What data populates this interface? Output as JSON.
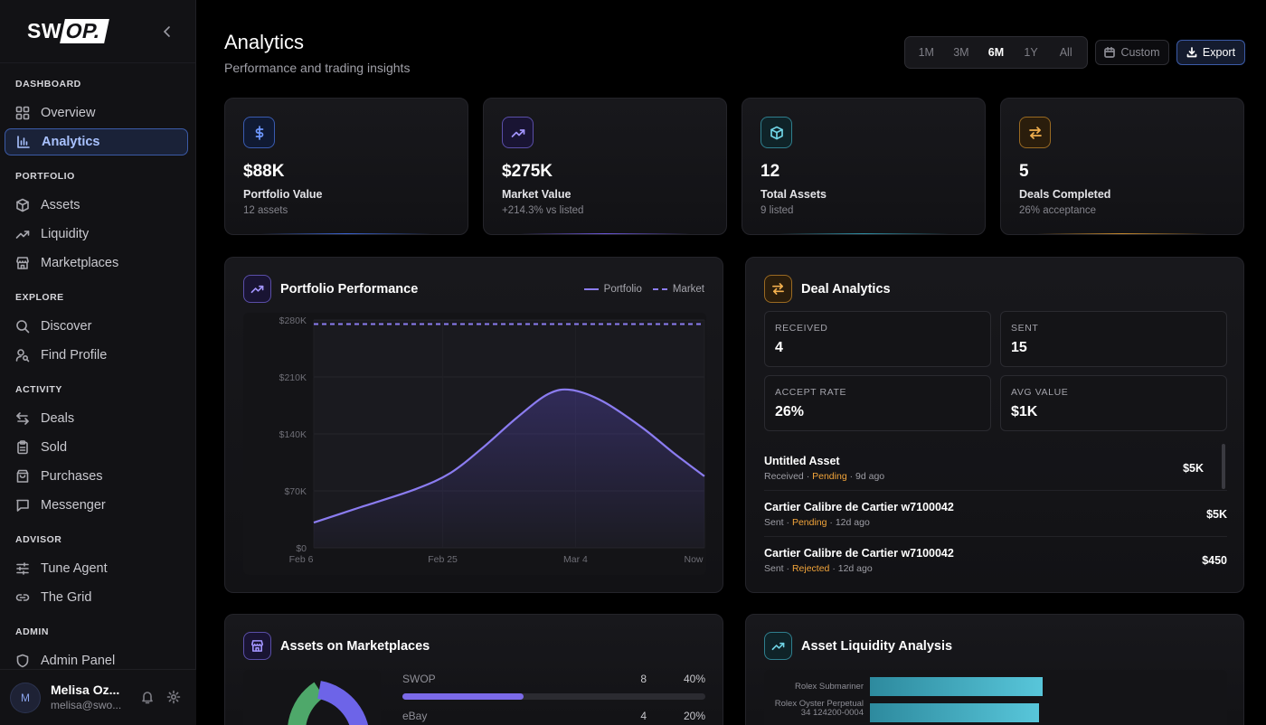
{
  "brand": {
    "logo_left": "SW",
    "logo_right": "OP."
  },
  "sidebar": {
    "sections": [
      {
        "label": "DASHBOARD",
        "items": [
          {
            "label": "Overview",
            "icon": "grid-icon"
          },
          {
            "label": "Analytics",
            "icon": "bar-chart-icon",
            "active": true
          }
        ]
      },
      {
        "label": "PORTFOLIO",
        "items": [
          {
            "label": "Assets",
            "icon": "box-icon"
          },
          {
            "label": "Liquidity",
            "icon": "trending-up-icon"
          },
          {
            "label": "Marketplaces",
            "icon": "store-icon"
          }
        ]
      },
      {
        "label": "EXPLORE",
        "items": [
          {
            "label": "Discover",
            "icon": "search-icon"
          },
          {
            "label": "Find Profile",
            "icon": "user-search-icon"
          }
        ]
      },
      {
        "label": "ACTIVITY",
        "items": [
          {
            "label": "Deals",
            "icon": "swap-icon"
          },
          {
            "label": "Sold",
            "icon": "clipboard-icon"
          },
          {
            "label": "Purchases",
            "icon": "bag-icon"
          },
          {
            "label": "Messenger",
            "icon": "message-icon"
          }
        ]
      },
      {
        "label": "ADVISOR",
        "items": [
          {
            "label": "Tune Agent",
            "icon": "sliders-icon"
          },
          {
            "label": "The Grid",
            "icon": "link-icon"
          }
        ]
      },
      {
        "label": "ADMIN",
        "items": [
          {
            "label": "Admin Panel",
            "icon": "shield-icon"
          }
        ]
      }
    ],
    "user": {
      "initial": "M",
      "name": "Melisa Oz...",
      "email": "melisa@swo..."
    }
  },
  "header": {
    "title": "Analytics",
    "subtitle": "Performance and trading insights",
    "ranges": [
      "1M",
      "3M",
      "6M",
      "1Y",
      "All"
    ],
    "selected_range": "6M",
    "custom_label": "Custom",
    "export_label": "Export"
  },
  "stats": [
    {
      "value": "$88K",
      "label": "Portfolio Value",
      "sub": "12 assets",
      "icon": "dollar-icon",
      "color": "#4f7be8"
    },
    {
      "value": "$275K",
      "label": "Market Value",
      "sub": "+214.3% vs listed",
      "icon": "trending-up-icon",
      "color": "#8b7cf0"
    },
    {
      "value": "12",
      "label": "Total Assets",
      "sub": "9 listed",
      "icon": "box-icon",
      "color": "#4fb6c9"
    },
    {
      "value": "5",
      "label": "Deals Completed",
      "sub": "26% acceptance",
      "icon": "swap-icon",
      "color": "#e8a33a"
    }
  ],
  "performance": {
    "title": "Portfolio Performance",
    "legend": [
      "Portfolio",
      "Market"
    ]
  },
  "chart_data": {
    "type": "line",
    "title": "Portfolio Performance",
    "x_ticks": [
      "Feb 6",
      "Feb 25",
      "Mar 4",
      "Now"
    ],
    "y_ticks": [
      "$0",
      "$70K",
      "$140K",
      "$210K",
      "$280K"
    ],
    "ylim": [
      0,
      280000
    ],
    "series": [
      {
        "name": "Portfolio",
        "style": "solid",
        "color": "#8b7cf0",
        "points": [
          [
            0,
            31000
          ],
          [
            0.12,
            50000
          ],
          [
            0.26,
            72000
          ],
          [
            0.35,
            92000
          ],
          [
            0.43,
            122000
          ],
          [
            0.52,
            160000
          ],
          [
            0.6,
            189000
          ],
          [
            0.66,
            194000
          ],
          [
            0.74,
            180000
          ],
          [
            0.84,
            148000
          ],
          [
            0.92,
            117000
          ],
          [
            1.0,
            88000
          ]
        ]
      },
      {
        "name": "Market",
        "style": "dashed",
        "color": "#8b7cf0",
        "points": [
          [
            0,
            275000
          ],
          [
            1.0,
            275000
          ]
        ]
      }
    ],
    "grid": true
  },
  "deals": {
    "title": "Deal Analytics",
    "boxes": [
      {
        "label": "RECEIVED",
        "value": "4"
      },
      {
        "label": "SENT",
        "value": "15"
      },
      {
        "label": "ACCEPT RATE",
        "value": "26%"
      },
      {
        "label": "AVG VALUE",
        "value": "$1K"
      }
    ],
    "rows": [
      {
        "name": "Untitled Asset",
        "direction": "Received",
        "status": "Pending",
        "age": "9d ago",
        "amount": "$5K"
      },
      {
        "name": "Cartier Calibre de Cartier w7100042",
        "direction": "Sent",
        "status": "Pending",
        "age": "12d ago",
        "amount": "$5K"
      },
      {
        "name": "Cartier Calibre de Cartier w7100042",
        "direction": "Sent",
        "status": "Rejected",
        "age": "12d ago",
        "amount": "$450"
      }
    ]
  },
  "marketplaces": {
    "title": "Assets on Marketplaces",
    "rows": [
      {
        "name": "SWOP",
        "count": "8",
        "pct": "40%",
        "fraction": 0.4
      },
      {
        "name": "eBay",
        "count": "4",
        "pct": "20%",
        "fraction": 0.2
      }
    ]
  },
  "liquidity": {
    "title": "Asset Liquidity Analysis",
    "bars": [
      {
        "label": "Rolex Submariner",
        "fraction": 0.98
      },
      {
        "label": "Rolex Oyster Perpetual 34 124200-0004",
        "fraction": 0.96
      }
    ]
  }
}
